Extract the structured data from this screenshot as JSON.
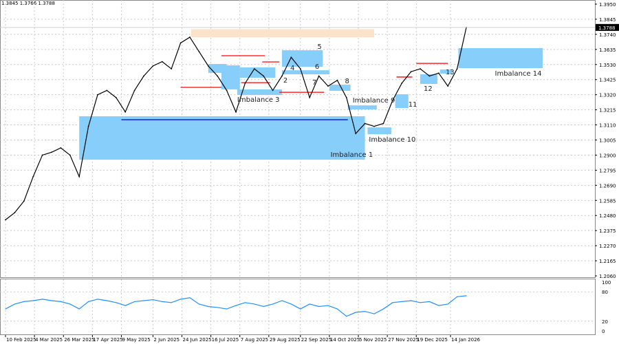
{
  "header": {
    "ohlc_text": "1.3845 1.3766 1.3788"
  },
  "chart_data": [
    {
      "type": "line",
      "panel": "price",
      "current_price": "1.3788",
      "price_range": [
        1.206,
        1.395
      ],
      "y_ticks": [
        "1.3950",
        "1.3845",
        "1.3740",
        "1.3635",
        "1.3530",
        "1.3425",
        "1.3320",
        "1.3215",
        "1.3110",
        "1.3005",
        "1.2900",
        "1.2795",
        "1.2690",
        "1.2585",
        "1.2480",
        "1.2375",
        "1.2270",
        "1.2165",
        "1.2060"
      ],
      "x_ticks": [
        {
          "label": "10 Feb 2025",
          "date": "2025-02-10"
        },
        {
          "label": "4 Mar 2025",
          "date": "2025-03-04"
        },
        {
          "label": "26 Mar 2025",
          "date": "2025-03-26"
        },
        {
          "label": "17 Apr 2025",
          "date": "2025-04-17"
        },
        {
          "label": "9 May 2025",
          "date": "2025-05-09"
        },
        {
          "label": "2 Jun 2025",
          "date": "2025-06-02"
        },
        {
          "label": "24 Jun 2025",
          "date": "2025-06-24"
        },
        {
          "label": "16 Jul 2025",
          "date": "2025-07-16"
        },
        {
          "label": "7 Aug 2025",
          "date": "2025-08-07"
        },
        {
          "label": "29 Aug 2025",
          "date": "2025-08-29"
        },
        {
          "label": "22 Sep 2025",
          "date": "2025-09-22"
        },
        {
          "label": "14 Oct 2025",
          "date": "2025-10-14"
        },
        {
          "label": "5 Nov 2025",
          "date": "2025-11-05"
        },
        {
          "label": "27 Nov 2025",
          "date": "2025-11-27"
        },
        {
          "label": "19 Dec 2025",
          "date": "2025-12-19"
        },
        {
          "label": "14 Jan 2026",
          "date": "2026-01-14"
        }
      ],
      "grid": true,
      "series": {
        "dates": [
          "2025-02-10",
          "2025-02-17",
          "2025-02-24",
          "2025-03-03",
          "2025-03-10",
          "2025-03-17",
          "2025-03-24",
          "2025-03-31",
          "2025-04-07",
          "2025-04-14",
          "2025-04-21",
          "2025-04-28",
          "2025-05-05",
          "2025-05-12",
          "2025-05-19",
          "2025-05-26",
          "2025-06-02",
          "2025-06-09",
          "2025-06-16",
          "2025-06-23",
          "2025-06-30",
          "2025-07-07",
          "2025-07-14",
          "2025-07-21",
          "2025-07-28",
          "2025-08-04",
          "2025-08-11",
          "2025-08-18",
          "2025-08-25",
          "2025-09-01",
          "2025-09-08",
          "2025-09-15",
          "2025-09-22",
          "2025-09-29",
          "2025-10-06",
          "2025-10-13",
          "2025-10-20",
          "2025-10-27",
          "2025-11-03",
          "2025-11-10",
          "2025-11-17",
          "2025-11-24",
          "2025-12-01",
          "2025-12-08",
          "2025-12-15",
          "2025-12-22",
          "2025-12-29",
          "2026-01-05",
          "2026-01-12",
          "2026-01-19",
          "2026-01-26"
        ],
        "close": [
          1.245,
          1.25,
          1.258,
          1.275,
          1.29,
          1.292,
          1.295,
          1.29,
          1.275,
          1.31,
          1.332,
          1.335,
          1.33,
          1.32,
          1.335,
          1.345,
          1.352,
          1.355,
          1.35,
          1.368,
          1.372,
          1.362,
          1.352,
          1.345,
          1.335,
          1.32,
          1.34,
          1.35,
          1.345,
          1.335,
          1.345,
          1.358,
          1.35,
          1.33,
          1.345,
          1.338,
          1.342,
          1.33,
          1.305,
          1.312,
          1.31,
          1.312,
          1.328,
          1.34,
          1.348,
          1.35,
          1.345,
          1.347,
          1.338,
          1.35,
          1.3788
        ]
      },
      "zones": [
        {
          "label": "Imbalance 1",
          "from": "2025-04-07",
          "to": "2025-11-10",
          "top": 1.317,
          "bottom": 1.2868,
          "color": "#87cefa"
        },
        {
          "label": "",
          "from": "2025-07-14",
          "to": "2025-07-28",
          "top": 1.3534,
          "bottom": 1.3472,
          "color": "#87cefa"
        },
        {
          "label": "",
          "from": "2025-07-24",
          "to": "2025-08-07",
          "top": 1.3524,
          "bottom": 1.3357,
          "color": "#87cefa"
        },
        {
          "label": "",
          "from": "2025-08-07",
          "to": "2025-09-03",
          "top": 1.351,
          "bottom": 1.3438,
          "color": "#87cefa"
        },
        {
          "label": "Imbalance 3",
          "from": "2025-08-05",
          "to": "2025-09-08",
          "top": 1.3357,
          "bottom": 1.3318,
          "color": "#87cefa"
        },
        {
          "label": "5",
          "from": "2025-09-08",
          "to": "2025-10-09",
          "top": 1.3629,
          "bottom": 1.3514,
          "color": "#87cefa"
        },
        {
          "label": "4",
          "from": "2025-09-08",
          "to": "2025-10-14",
          "top": 1.349,
          "bottom": 1.3462,
          "color": "#87cefa"
        },
        {
          "label": "8",
          "from": "2025-10-14",
          "to": "2025-10-30",
          "top": 1.339,
          "bottom": 1.3347,
          "color": "#87cefa"
        },
        {
          "label": "Imbalance 9",
          "from": "2025-10-28",
          "to": "2025-11-19",
          "top": 1.3246,
          "bottom": 1.3218,
          "color": "#87cefa"
        },
        {
          "label": "Imbalance 10",
          "from": "2025-11-12",
          "to": "2025-11-30",
          "top": 1.3093,
          "bottom": 1.3045,
          "color": "#87cefa"
        },
        {
          "label": "11",
          "from": "2025-12-03",
          "to": "2025-12-13",
          "top": 1.3323,
          "bottom": 1.3227,
          "color": "#87cefa"
        },
        {
          "label": "12",
          "from": "2025-12-22",
          "to": "2026-01-04",
          "top": 1.3462,
          "bottom": 1.3395,
          "color": "#87cefa"
        },
        {
          "label": "13",
          "from": "2026-01-06",
          "to": "2026-01-15",
          "top": 1.3495,
          "bottom": 1.3467,
          "color": "#87cefa"
        },
        {
          "label": "Imbalance 14",
          "from": "2026-01-20",
          "to": "2026-03-25",
          "top": 1.3644,
          "bottom": 1.3505,
          "color": "#87cefa"
        },
        {
          "label": "",
          "from": "2025-07-01",
          "to": "2025-11-17",
          "top": 1.3776,
          "bottom": 1.3719,
          "color": "#fae3c8"
        }
      ],
      "zone_labels_extra": [
        {
          "text": "2",
          "date": "2025-09-09",
          "price": 1.3405
        },
        {
          "text": "6",
          "date": "2025-10-03",
          "price": 1.35
        },
        {
          "text": "7",
          "date": "2025-10-01",
          "price": 1.339
        }
      ],
      "level_lines": [
        {
          "price": 1.3146,
          "from": "2025-05-09",
          "to": "2025-10-28",
          "color": "#0000cc"
        },
        {
          "price": 1.3371,
          "from": "2025-06-23",
          "to": "2025-07-24",
          "color": "#ff0000"
        },
        {
          "price": 1.3591,
          "from": "2025-07-24",
          "to": "2025-08-26",
          "color": "#ff0000"
        },
        {
          "price": 1.3548,
          "from": "2025-08-24",
          "to": "2025-09-06",
          "color": "#ff0000"
        },
        {
          "price": 1.3404,
          "from": "2025-08-08",
          "to": "2025-08-30",
          "color": "#ff0000"
        },
        {
          "price": 1.3337,
          "from": "2025-09-06",
          "to": "2025-10-10",
          "color": "#ff0000"
        },
        {
          "price": 1.3443,
          "from": "2025-12-04",
          "to": "2025-12-16",
          "color": "#ff0000"
        },
        {
          "price": 1.3538,
          "from": "2025-12-19",
          "to": "2026-01-12",
          "color": "#ff0000"
        }
      ]
    },
    {
      "type": "line",
      "panel": "oscillator",
      "y_range": [
        0,
        100
      ],
      "y_ticks": [
        "100",
        "80",
        "20",
        "0"
      ],
      "series": {
        "values": [
          45,
          55,
          60,
          62,
          65,
          62,
          60,
          55,
          45,
          60,
          65,
          62,
          58,
          52,
          60,
          62,
          64,
          60,
          58,
          65,
          68,
          55,
          50,
          48,
          45,
          52,
          58,
          55,
          50,
          55,
          62,
          55,
          45,
          55,
          50,
          52,
          45,
          30,
          38,
          40,
          35,
          45,
          58,
          60,
          62,
          58,
          60,
          52,
          55,
          70,
          72
        ],
        "color": "#1e90ff"
      }
    }
  ]
}
